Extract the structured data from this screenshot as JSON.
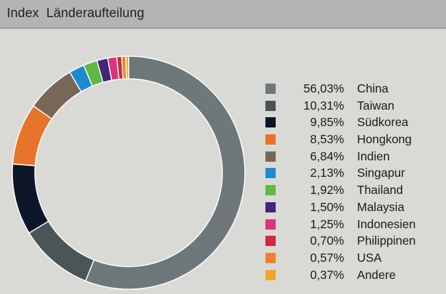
{
  "title": "Index  Länderaufteilung",
  "chart_data": {
    "type": "pie",
    "style": "donut",
    "legend_placement": "right",
    "slices": [
      {
        "label": "China",
        "value": 56.03,
        "display": "56,03%",
        "color": "#6e787b"
      },
      {
        "label": "Taiwan",
        "value": 10.31,
        "display": "10,31%",
        "color": "#4b5457"
      },
      {
        "label": "Südkorea",
        "value": 9.85,
        "display": "9,85%",
        "color": "#0d1628"
      },
      {
        "label": "Hongkong",
        "value": 8.53,
        "display": "8,53%",
        "color": "#e8732b"
      },
      {
        "label": "Indien",
        "value": 6.84,
        "display": "6,84%",
        "color": "#786756"
      },
      {
        "label": "Singapur",
        "value": 2.13,
        "display": "2,13%",
        "color": "#1d8bd0"
      },
      {
        "label": "Thailand",
        "value": 1.92,
        "display": "1,92%",
        "color": "#5fb944"
      },
      {
        "label": "Malaysia",
        "value": 1.5,
        "display": "1,50%",
        "color": "#43257a"
      },
      {
        "label": "Indonesien",
        "value": 1.25,
        "display": "1,25%",
        "color": "#d8357d"
      },
      {
        "label": "Philippinen",
        "value": 0.7,
        "display": "0,70%",
        "color": "#d3283c"
      },
      {
        "label": "USA",
        "value": 0.57,
        "display": "0,57%",
        "color": "#ef7f2b"
      },
      {
        "label": "Andere",
        "value": 0.37,
        "display": "0,37%",
        "color": "#f4a529"
      }
    ]
  }
}
